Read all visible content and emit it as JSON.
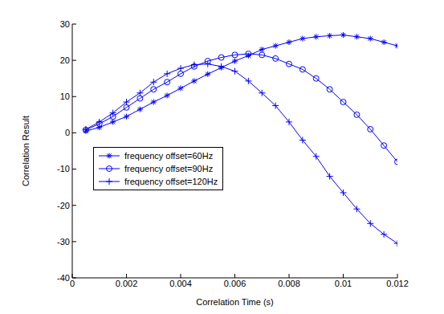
{
  "chart_data": {
    "type": "line",
    "x_label": "Correlation Time (s)",
    "y_label": "Correlation Result",
    "x": [
      0.0005,
      0.001,
      0.0015,
      0.002,
      0.0025,
      0.003,
      0.0035,
      0.004,
      0.0045,
      0.005,
      0.0055,
      0.006,
      0.0065,
      0.007,
      0.0075,
      0.008,
      0.0085,
      0.009,
      0.0095,
      0.01,
      0.0105,
      0.011,
      0.0115,
      0.012
    ],
    "series": [
      {
        "name": "frequency offset=60Hz",
        "color": "#0000ff",
        "marker": "star",
        "values": [
          0.5,
          1.5,
          3,
          4.5,
          6.5,
          8.5,
          10.3,
          12.3,
          14.3,
          16.2,
          18,
          19.8,
          21.3,
          23,
          24,
          25,
          26,
          26.5,
          26.8,
          27,
          26.5,
          26,
          25,
          24
        ]
      },
      {
        "name": "frequency offset=90Hz",
        "color": "#0000ff",
        "marker": "circle",
        "values": [
          0.8,
          2.5,
          4.5,
          7,
          9.5,
          12,
          14,
          16.3,
          18.3,
          19.8,
          20.8,
          21.5,
          21.8,
          21.5,
          20.5,
          19,
          17.5,
          15,
          12,
          8.5,
          5,
          1,
          -3.5,
          -8
        ]
      },
      {
        "name": "frequency offset=120Hz",
        "color": "#0000ff",
        "marker": "plus",
        "values": [
          1,
          3,
          5.5,
          8.5,
          11,
          14,
          16.3,
          17.8,
          18.8,
          19,
          18.3,
          17,
          14.3,
          11,
          7.5,
          3,
          -2,
          -6.5,
          -12,
          -16.5,
          -21,
          -25,
          -28,
          -30.5
        ]
      }
    ],
    "xlim": [
      0,
      0.012
    ],
    "xticks": [
      0,
      0.002,
      0.004,
      0.006,
      0.008,
      0.01,
      0.012
    ],
    "ylim": [
      -40,
      30
    ],
    "yticks": [
      -40,
      -30,
      -20,
      -10,
      0,
      10,
      20,
      30
    ],
    "grid": false,
    "legend": "left"
  }
}
